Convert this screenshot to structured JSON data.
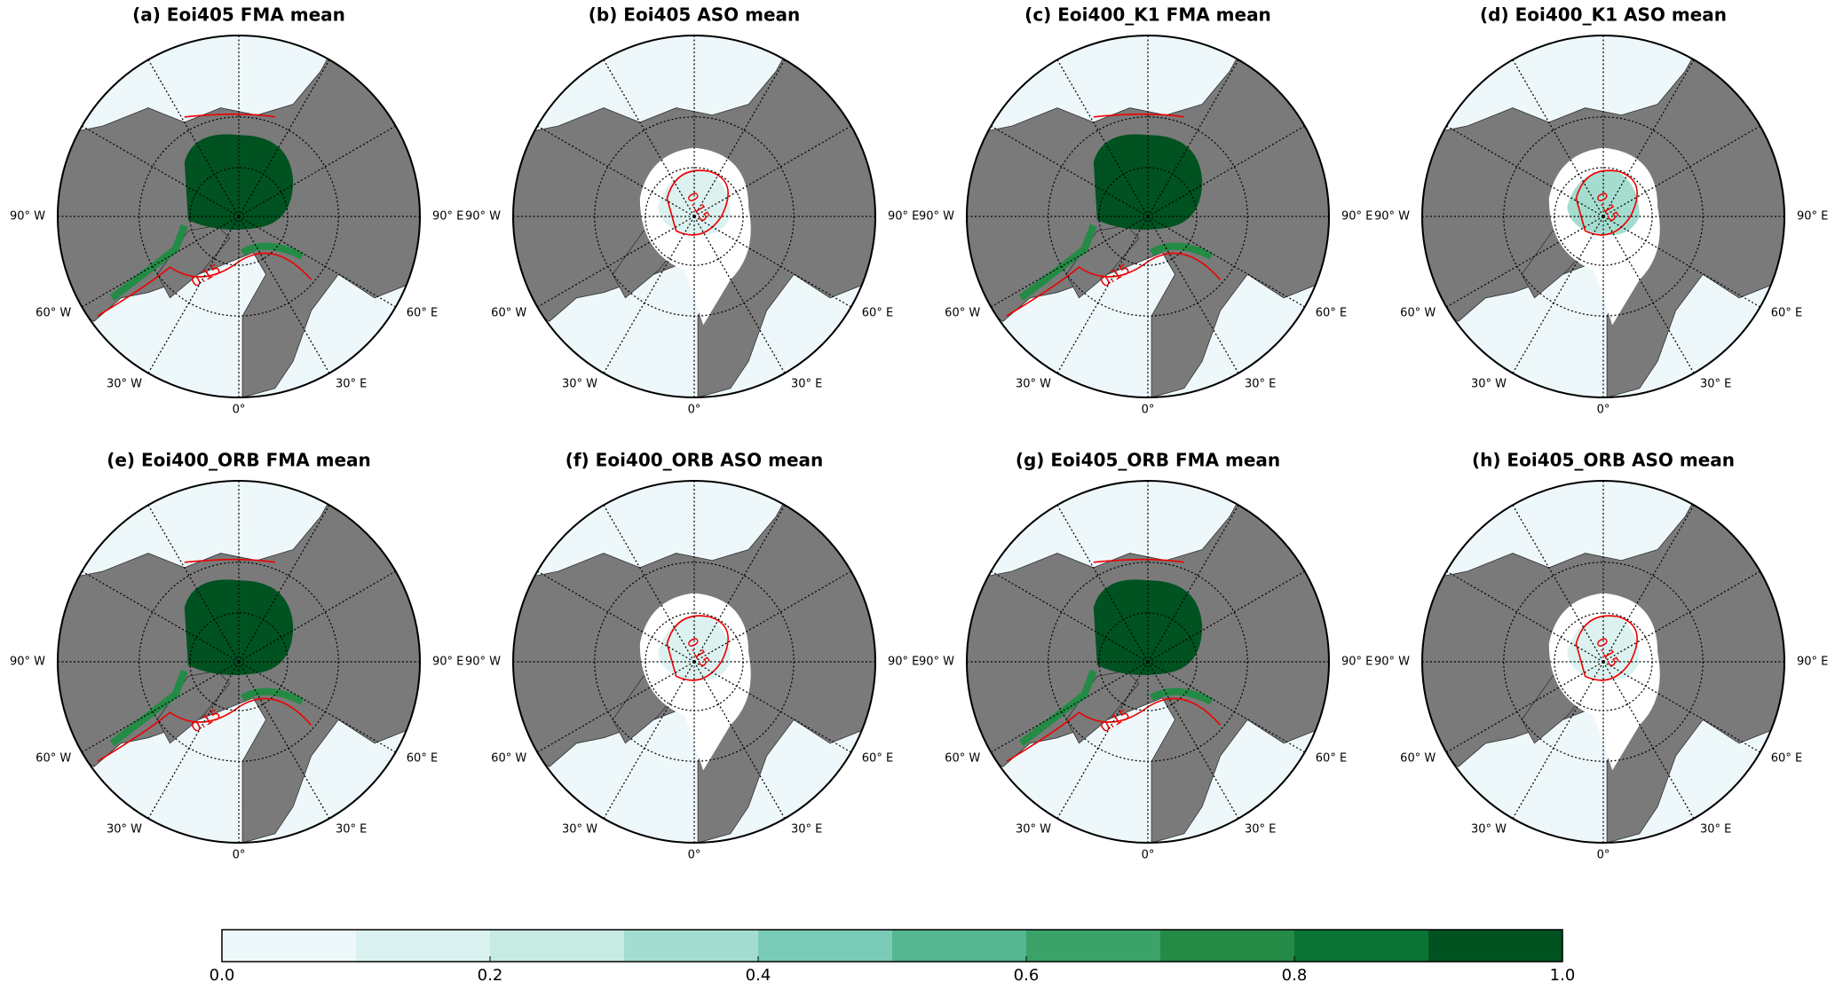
{
  "panels": [
    {
      "title": "(a) Eoi405 FMA mean",
      "contour_label": "0.15"
    },
    {
      "title": "(b) Eoi405 ASO mean",
      "contour_label": "0.15"
    },
    {
      "title": "(c) Eoi400_K1 FMA mean",
      "contour_label": "0.15"
    },
    {
      "title": "(d) Eoi400_K1 ASO mean",
      "contour_label": "0.15"
    },
    {
      "title": "(e) Eoi400_ORB FMA mean",
      "contour_label": "0.15"
    },
    {
      "title": "(f) Eoi400_ORB ASO mean",
      "contour_label": "0.15"
    },
    {
      "title": "(g) Eoi405_ORB FMA mean",
      "contour_label": "0.15"
    },
    {
      "title": "(h) Eoi405_ORB ASO mean",
      "contour_label": "0.15"
    }
  ],
  "lon_labels": [
    "90° W",
    "60° W",
    "30° W",
    "0°",
    "30° E",
    "60° E",
    "90° E"
  ],
  "chart_data": {
    "type": "colorbar",
    "bins": [
      0,
      0.1,
      0.2,
      0.3,
      0.4,
      0.5,
      0.6,
      0.7,
      0.8,
      0.9,
      1
    ],
    "colors": [
      "#eef8fb",
      "#dcf2f1",
      "#c6ebe3",
      "#a4ddd0",
      "#7acbb7",
      "#54b792",
      "#3ba36a",
      "#238b45",
      "#0b7434",
      "#005221"
    ],
    "xlim": [
      0,
      1
    ],
    "xticks": [
      {
        "value": 0,
        "label": "0.0"
      },
      0.2,
      0.4,
      0.6,
      0.8,
      {
        "value": 1,
        "label": "1.0"
      }
    ]
  }
}
